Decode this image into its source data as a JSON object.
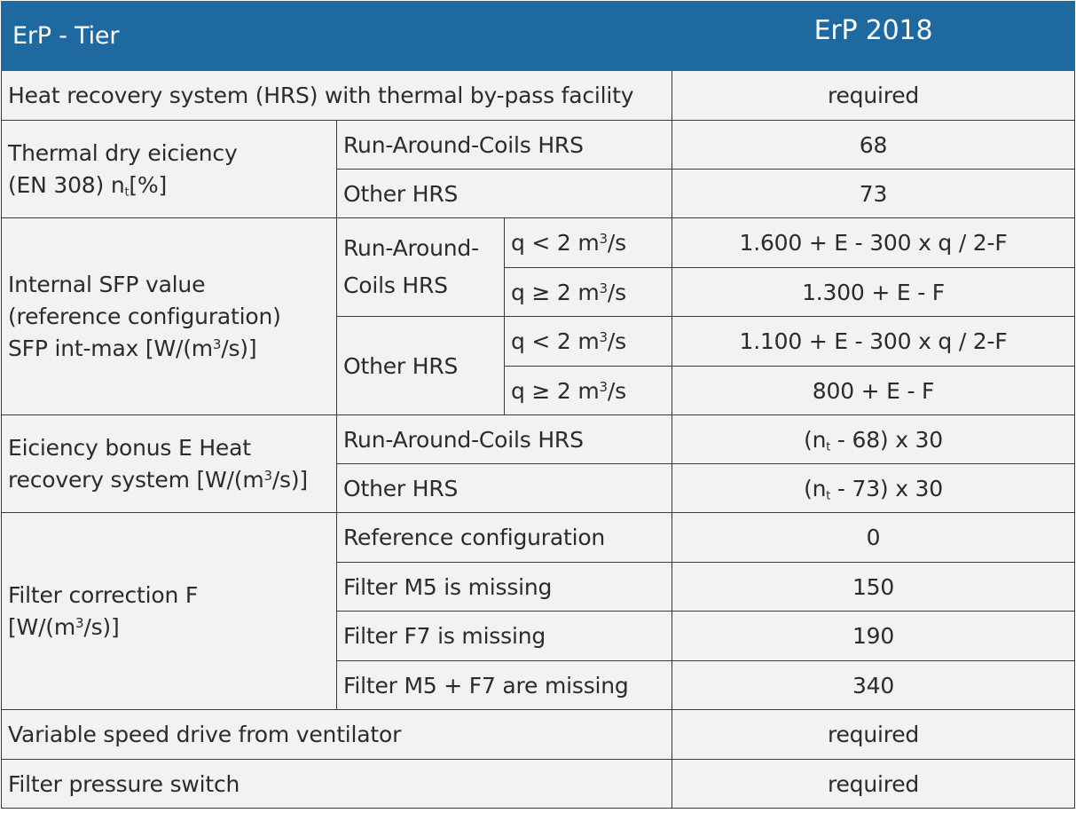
{
  "header": {
    "tier_label": "ErP - Tier",
    "year_label": "ErP 2018"
  },
  "rows": {
    "hrs_bypass": {
      "label": "Heat recovery system (HRS) with thermal by-pass facility",
      "value": "required"
    },
    "thermal_efficiency": {
      "label_line1": "Thermal dry eiciency",
      "label_line2_prefix": "(EN 308) n",
      "label_line2_sub": "t",
      "label_line2_suffix": "[%]",
      "run_around_label": "Run-Around-Coils HRS",
      "run_around_value": "68",
      "other_label": "Other HRS",
      "other_value": "73"
    },
    "internal_sfp": {
      "label_line1": "Internal SFP value",
      "label_line2": "(reference configuration)",
      "label_line3_prefix": "SFP int-max [W/(m",
      "label_line3_sup": "3",
      "label_line3_suffix": "/s)]",
      "run_around_label_line1": "Run-Around-",
      "run_around_label_line2": "Coils HRS",
      "other_label": "Other HRS",
      "q_less_prefix": "q < 2 m",
      "q_geq_prefix": "q ≥ 2  m",
      "q_sup": "3",
      "q_suffix": "/s",
      "run_around_q_less_value": "1.600 + E - 300 x q / 2-F",
      "run_around_q_geq_value": "1.300 + E - F",
      "other_q_less_value": "1.100 + E - 300 x q / 2-F",
      "other_q_geq_value": "800 + E - F"
    },
    "efficiency_bonus": {
      "label_line1": "Eiciency bonus E Heat",
      "label_line2_prefix": "recovery system [W/(m",
      "label_line2_sup": "3",
      "label_line2_suffix": "/s)]",
      "run_around_label": "Run-Around-Coils HRS",
      "run_around_value_prefix": "(n",
      "run_around_value_sub": "t",
      "run_around_value_suffix": " - 68) x 30",
      "other_label": "Other HRS",
      "other_value_prefix": "(n",
      "other_value_sub": "t",
      "other_value_suffix": " - 73) x 30"
    },
    "filter_correction": {
      "label_line1": "Filter correction F",
      "label_line2_prefix": "[W/(m",
      "label_line2_sup": "3",
      "label_line2_suffix": "/s)]",
      "items": [
        {
          "label": "Reference configuration",
          "value": "0"
        },
        {
          "label": "Filter M5 is missing",
          "value": "150"
        },
        {
          "label": "Filter F7 is missing",
          "value": "190"
        },
        {
          "label": "Filter M5 + F7 are missing",
          "value": "340"
        }
      ]
    },
    "variable_speed": {
      "label": "Variable speed drive from ventilator",
      "value": "required"
    },
    "pressure_switch": {
      "label": "Filter pressure switch",
      "value": "required"
    }
  },
  "colors": {
    "header_bg": "#1e6aa0",
    "header_text": "#ffffff",
    "cell_bg": "#f2f2f2",
    "border": "#3a3a3a",
    "text": "#2b2b2b"
  }
}
